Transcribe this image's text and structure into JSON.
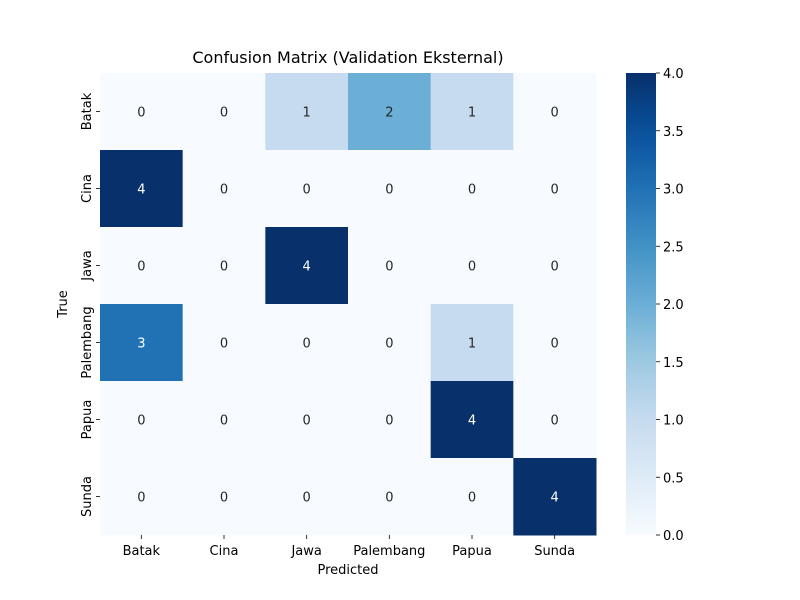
{
  "chart_data": {
    "type": "heatmap",
    "title": "Confusion Matrix (Validation Eksternal)",
    "xlabel": "Predicted",
    "ylabel": "True",
    "x_categories": [
      "Batak",
      "Cina",
      "Jawa",
      "Palembang",
      "Papua",
      "Sunda"
    ],
    "y_categories": [
      "Batak",
      "Cina",
      "Jawa",
      "Palembang",
      "Papua",
      "Sunda"
    ],
    "values": [
      [
        0,
        0,
        1,
        2,
        1,
        0
      ],
      [
        4,
        0,
        0,
        0,
        0,
        0
      ],
      [
        0,
        0,
        4,
        0,
        0,
        0
      ],
      [
        3,
        0,
        0,
        0,
        1,
        0
      ],
      [
        0,
        0,
        0,
        0,
        4,
        0
      ],
      [
        0,
        0,
        0,
        0,
        0,
        4
      ]
    ],
    "colorbar": {
      "range": [
        0.0,
        4.0
      ],
      "ticks": [
        "0.0",
        "0.5",
        "1.0",
        "1.5",
        "2.0",
        "2.5",
        "3.0",
        "3.5",
        "4.0"
      ],
      "colormap": "Blues"
    }
  }
}
